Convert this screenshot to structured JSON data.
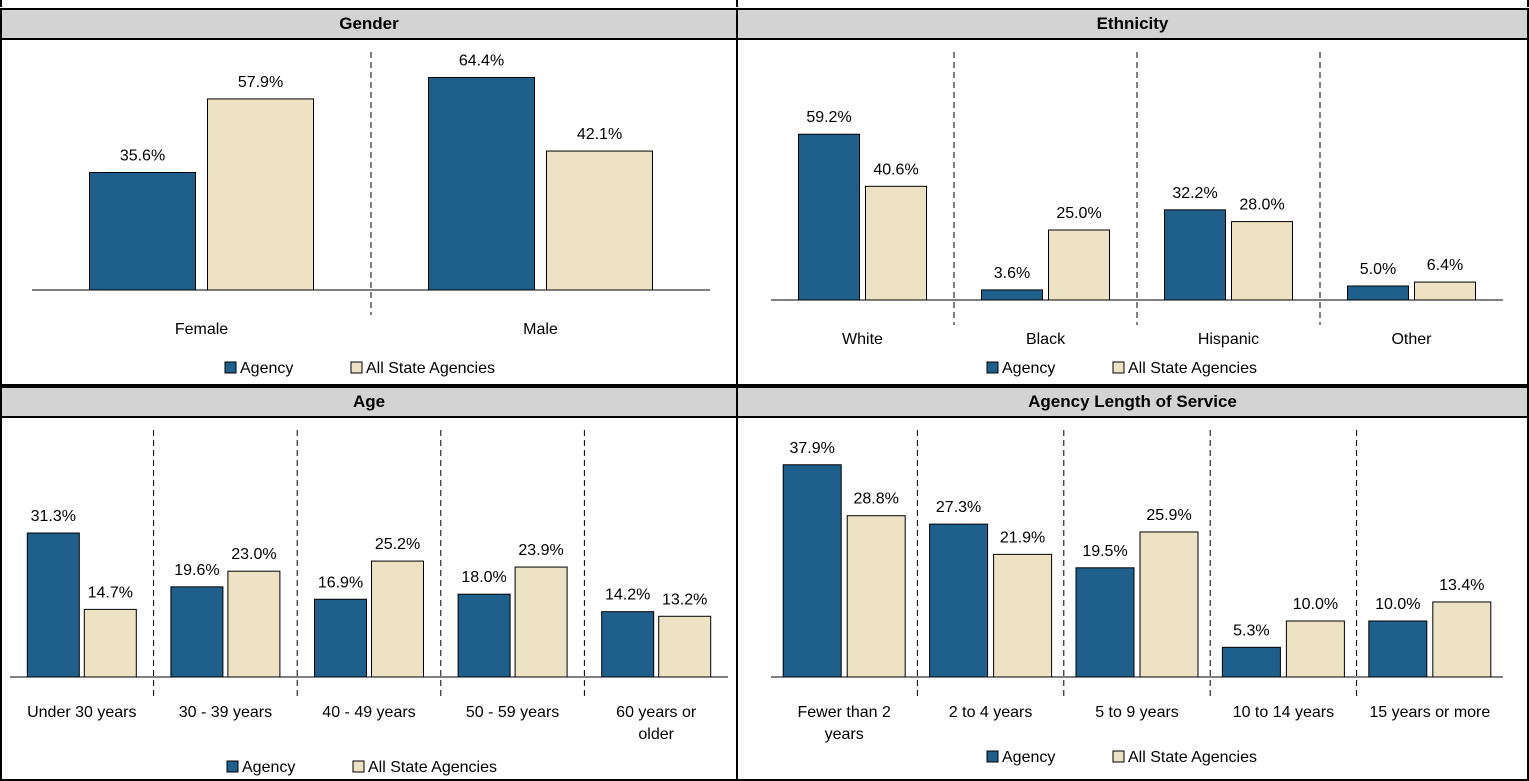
{
  "colors": {
    "agency": "#1f5f8b",
    "state": "#eee2c4",
    "header_bg": "#d3d3d3"
  },
  "legend": {
    "agency": "Agency",
    "state": "All State Agencies"
  },
  "chart_data": [
    {
      "type": "bar",
      "title": "Gender",
      "categories": [
        "Female",
        "Male"
      ],
      "series": [
        {
          "name": "Agency",
          "values": [
            35.6,
            64.4
          ]
        },
        {
          "name": "All State Agencies",
          "values": [
            57.9,
            42.1
          ]
        }
      ],
      "value_labels": [
        [
          "35.6%",
          "64.4%"
        ],
        [
          "57.9%",
          "42.1%"
        ]
      ],
      "ylim": [
        0,
        80
      ],
      "legend_position": "bottom",
      "grid": false
    },
    {
      "type": "bar",
      "title": "Ethnicity",
      "categories": [
        "White",
        "Black",
        "Hispanic",
        "Other"
      ],
      "series": [
        {
          "name": "Agency",
          "values": [
            59.2,
            3.6,
            32.2,
            5.0
          ]
        },
        {
          "name": "All State Agencies",
          "values": [
            40.6,
            25.0,
            28.0,
            6.4
          ]
        }
      ],
      "value_labels": [
        [
          "59.2%",
          "3.6%",
          "32.2%",
          "5.0%"
        ],
        [
          "40.6%",
          "25.0%",
          "28.0%",
          "6.4%"
        ]
      ],
      "ylim": [
        0,
        80
      ],
      "legend_position": "bottom",
      "grid": false
    },
    {
      "type": "bar",
      "title": "Age",
      "categories": [
        "Under 30 years",
        "30 - 39 years",
        "40 - 49 years",
        "50 - 59 years",
        "60 years or older"
      ],
      "series": [
        {
          "name": "Agency",
          "values": [
            31.3,
            19.6,
            16.9,
            18.0,
            14.2
          ]
        },
        {
          "name": "All State Agencies",
          "values": [
            14.7,
            23.0,
            25.2,
            23.9,
            13.2
          ]
        }
      ],
      "value_labels": [
        [
          "31.3%",
          "19.6%",
          "16.9%",
          "18.0%",
          "14.2%"
        ],
        [
          "14.7%",
          "23.0%",
          "25.2%",
          "23.9%",
          "13.2%"
        ]
      ],
      "ylim": [
        0,
        50
      ],
      "legend_position": "bottom",
      "grid": false
    },
    {
      "type": "bar",
      "title": "Agency Length of Service",
      "categories": [
        "Fewer than 2 years",
        "2 to 4 years",
        "5 to 9 years",
        "10 to 14 years",
        "15 years or more"
      ],
      "series": [
        {
          "name": "Agency",
          "values": [
            37.9,
            27.3,
            19.5,
            5.3,
            10.0
          ]
        },
        {
          "name": "All State Agencies",
          "values": [
            28.8,
            21.9,
            25.9,
            10.0,
            13.4
          ]
        }
      ],
      "value_labels": [
        [
          "37.9%",
          "27.3%",
          "19.5%",
          "5.3%",
          "10.0%"
        ],
        [
          "28.8%",
          "21.9%",
          "25.9%",
          "10.0%",
          "13.4%"
        ]
      ],
      "ylim": [
        0,
        40
      ],
      "legend_position": "bottom",
      "grid": false
    }
  ]
}
